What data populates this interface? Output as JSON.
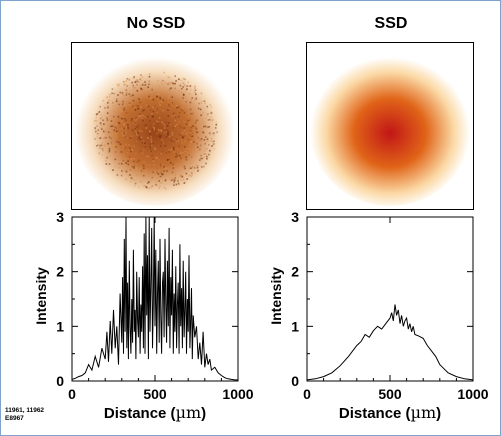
{
  "panels": [
    {
      "title": "No SSD",
      "image": {
        "color_center": "#9a4418",
        "color_mid": "#c26f32",
        "color_edge": "#f6dcbc",
        "speckle": true
      },
      "ylabel": "Intensity",
      "xlabel_prefix": "Distance (",
      "xlabel_unit": "µm",
      "xlabel_suffix": ")",
      "line_color": "#000000"
    },
    {
      "title": "SSD",
      "image": {
        "color_center": "#c11616",
        "color_mid": "#e06418",
        "color_edge": "#fbd9a6",
        "speckle": false
      },
      "ylabel": "Intensity",
      "xlabel_prefix": "Distance (",
      "xlabel_unit": "µm",
      "xlabel_suffix": ")",
      "line_color": "#000000"
    }
  ],
  "footnote": [
    "11961, 11962",
    "E8967"
  ],
  "chart_data": [
    {
      "type": "line",
      "title": "No SSD",
      "xlabel": "Distance (µm)",
      "ylabel": "Intensity",
      "xlim": [
        0,
        1000
      ],
      "ylim": [
        0,
        3
      ],
      "xticks": [
        0,
        500,
        1000
      ],
      "yticks": [
        0,
        1,
        2,
        3
      ],
      "grid": false,
      "series": [
        {
          "x": [
            0,
            20,
            40,
            60,
            80,
            100,
            120,
            140,
            160,
            180,
            200,
            210,
            220,
            230,
            240,
            250,
            260,
            270,
            280,
            290,
            300,
            305,
            310,
            315,
            320,
            325,
            330,
            335,
            340,
            345,
            350,
            355,
            360,
            365,
            370,
            375,
            380,
            385,
            390,
            395,
            400,
            405,
            410,
            415,
            420,
            425,
            430,
            435,
            440,
            445,
            450,
            455,
            460,
            465,
            470,
            475,
            480,
            485,
            490,
            495,
            500,
            505,
            510,
            515,
            520,
            525,
            530,
            535,
            540,
            545,
            550,
            555,
            560,
            565,
            570,
            575,
            580,
            585,
            590,
            595,
            600,
            605,
            610,
            615,
            620,
            625,
            630,
            635,
            640,
            645,
            650,
            655,
            660,
            665,
            670,
            675,
            680,
            685,
            690,
            695,
            700,
            705,
            710,
            715,
            720,
            725,
            730,
            740,
            750,
            760,
            770,
            780,
            790,
            800,
            810,
            820,
            830,
            840,
            860,
            880,
            900,
            920,
            940,
            960,
            980,
            1000
          ],
          "y": [
            0.03,
            0.05,
            0.08,
            0.1,
            0.15,
            0.3,
            0.2,
            0.45,
            0.25,
            0.6,
            0.4,
            0.9,
            0.35,
            1.1,
            0.5,
            1.3,
            0.6,
            1.0,
            0.3,
            1.6,
            0.7,
            1.9,
            0.5,
            2.6,
            0.9,
            3.0,
            0.6,
            1.8,
            0.4,
            2.2,
            1.0,
            0.5,
            1.5,
            0.7,
            2.4,
            0.9,
            1.3,
            0.4,
            2.0,
            1.1,
            0.8,
            1.9,
            0.5,
            1.4,
            0.9,
            2.1,
            0.6,
            2.7,
            0.5,
            3.0,
            1.2,
            2.3,
            0.4,
            3.0,
            0.9,
            1.7,
            2.8,
            0.6,
            1.4,
            3.0,
            1.0,
            2.4,
            0.5,
            1.6,
            2.2,
            0.7,
            2.6,
            1.2,
            0.5,
            1.8,
            2.0,
            0.8,
            2.6,
            1.4,
            0.7,
            2.2,
            1.0,
            2.8,
            0.6,
            1.9,
            1.2,
            2.4,
            0.5,
            1.6,
            0.9,
            2.1,
            0.6,
            1.4,
            1.8,
            0.5,
            2.5,
            1.0,
            1.7,
            0.6,
            2.2,
            0.8,
            1.3,
            2.0,
            0.5,
            1.5,
            0.9,
            2.3,
            0.6,
            1.1,
            1.7,
            0.4,
            1.2,
            0.8,
            1.0,
            0.4,
            0.7,
            0.3,
            0.9,
            0.25,
            0.5,
            0.3,
            0.4,
            0.2,
            0.25,
            0.15,
            0.1,
            0.06,
            0.04,
            0.03,
            0.02,
            0.02
          ]
        }
      ]
    },
    {
      "type": "line",
      "title": "SSD",
      "xlabel": "Distance (µm)",
      "ylabel": "Intensity",
      "xlim": [
        0,
        1000
      ],
      "ylim": [
        0,
        3
      ],
      "xticks": [
        0,
        500,
        1000
      ],
      "yticks": [
        0,
        1,
        2,
        3
      ],
      "grid": false,
      "series": [
        {
          "x": [
            0,
            50,
            100,
            150,
            200,
            250,
            300,
            325,
            350,
            375,
            400,
            425,
            450,
            475,
            500,
            510,
            520,
            530,
            540,
            550,
            560,
            570,
            580,
            590,
            600,
            610,
            620,
            630,
            640,
            650,
            675,
            700,
            725,
            750,
            775,
            800,
            850,
            900,
            950,
            1000
          ],
          "y": [
            0.02,
            0.04,
            0.08,
            0.15,
            0.28,
            0.45,
            0.65,
            0.72,
            0.85,
            0.8,
            0.92,
            1.0,
            0.95,
            1.05,
            1.15,
            1.25,
            1.1,
            1.4,
            1.2,
            1.3,
            1.05,
            1.2,
            1.0,
            1.1,
            1.15,
            0.95,
            1.05,
            0.9,
            1.0,
            0.85,
            0.82,
            0.78,
            0.65,
            0.55,
            0.45,
            0.3,
            0.15,
            0.08,
            0.04,
            0.02
          ]
        }
      ]
    }
  ]
}
